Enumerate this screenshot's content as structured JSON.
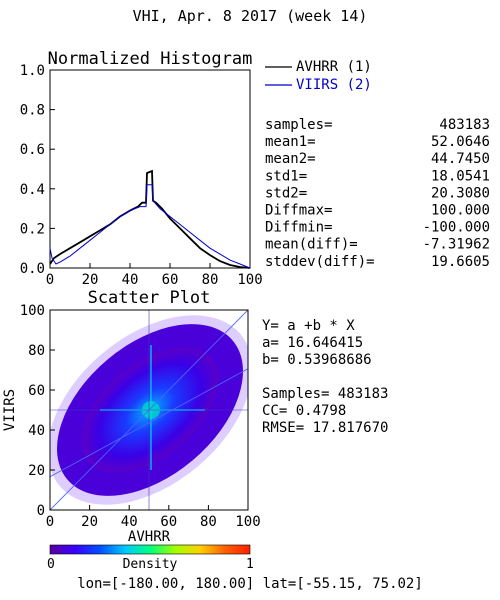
{
  "page_title": "VHI,  Apr. 8 2017 (week 14)",
  "footer": {
    "lon_label": "lon=",
    "lon_range": "[-180.00, 180.00]",
    "lat_label": "lat=",
    "lat_range": "[-55.15, 75.02]"
  },
  "chart_data": [
    {
      "type": "line",
      "title": "Normalized Histogram",
      "xlim": [
        0,
        100
      ],
      "ylim": [
        0,
        1.0
      ],
      "x_ticks": [
        0,
        20,
        40,
        60,
        80,
        100
      ],
      "y_ticks": [
        "0.0",
        "0.2",
        "0.4",
        "0.6",
        "0.8",
        "1.0"
      ],
      "series": [
        {
          "name": "AVHRR (1)",
          "color": "#000000",
          "points": [
            [
              0,
              0.02
            ],
            [
              2,
              0.05
            ],
            [
              5,
              0.07
            ],
            [
              10,
              0.1
            ],
            [
              15,
              0.13
            ],
            [
              20,
              0.16
            ],
            [
              25,
              0.19
            ],
            [
              30,
              0.22
            ],
            [
              35,
              0.26
            ],
            [
              40,
              0.29
            ],
            [
              44,
              0.31
            ],
            [
              46,
              0.33
            ],
            [
              48,
              0.33
            ],
            [
              48.5,
              0.48
            ],
            [
              51,
              0.49
            ],
            [
              51.5,
              0.34
            ],
            [
              53,
              0.33
            ],
            [
              56,
              0.3
            ],
            [
              60,
              0.25
            ],
            [
              65,
              0.2
            ],
            [
              70,
              0.15
            ],
            [
              75,
              0.1
            ],
            [
              80,
              0.065
            ],
            [
              85,
              0.035
            ],
            [
              90,
              0.015
            ],
            [
              95,
              0.005
            ],
            [
              100,
              0.0
            ]
          ]
        },
        {
          "name": "VIIRS (2)",
          "color": "#0000cc",
          "points": [
            [
              0,
              0.1
            ],
            [
              1,
              0.05
            ],
            [
              3,
              0.02
            ],
            [
              5,
              0.03
            ],
            [
              10,
              0.06
            ],
            [
              15,
              0.1
            ],
            [
              20,
              0.14
            ],
            [
              25,
              0.18
            ],
            [
              30,
              0.22
            ],
            [
              35,
              0.26
            ],
            [
              40,
              0.29
            ],
            [
              45,
              0.31
            ],
            [
              48,
              0.31
            ],
            [
              48.5,
              0.42
            ],
            [
              51,
              0.42
            ],
            [
              51.5,
              0.34
            ],
            [
              55,
              0.3
            ],
            [
              60,
              0.26
            ],
            [
              65,
              0.22
            ],
            [
              70,
              0.18
            ],
            [
              75,
              0.14
            ],
            [
              80,
              0.1
            ],
            [
              85,
              0.07
            ],
            [
              90,
              0.04
            ],
            [
              95,
              0.02
            ],
            [
              100,
              0.0
            ]
          ]
        }
      ]
    },
    {
      "type": "scatter",
      "title": "Scatter Plot",
      "xlabel": "AVHRR",
      "ylabel": "VIIRS",
      "xlim": [
        0,
        100
      ],
      "ylim": [
        0,
        100
      ],
      "x_ticks": [
        0,
        20,
        40,
        60,
        80,
        100
      ],
      "y_ticks": [
        0,
        20,
        40,
        60,
        80,
        100
      ],
      "fit": {
        "a": 16.646415,
        "b": 0.53968686
      },
      "density_colorbar": {
        "label": "Density",
        "min_label": "0",
        "max_label": "1",
        "colors": [
          "#5a00a0",
          "#3a00ff",
          "#0050ff",
          "#00c8ff",
          "#00ff80",
          "#a0ff00",
          "#ffd000",
          "#ff6000",
          "#ff2000"
        ]
      }
    }
  ],
  "legend": {
    "items": [
      {
        "label": "AVHRR (1)",
        "color": "#000000"
      },
      {
        "label": "VIIRS (2)",
        "color": "#0000cc"
      }
    ]
  },
  "stats": [
    {
      "label": "samples=",
      "value": "483183"
    },
    {
      "label": "mean1=",
      "value": "52.0646"
    },
    {
      "label": "mean2=",
      "value": "44.7450"
    },
    {
      "label": "std1=",
      "value": "18.0541"
    },
    {
      "label": "std2=",
      "value": "20.3080"
    },
    {
      "label": "Diffmax=",
      "value": "100.000"
    },
    {
      "label": "Diffmin=",
      "value": "-100.000"
    },
    {
      "label": "mean(diff)=",
      "value": "-7.31962"
    },
    {
      "label": "stddev(diff)=",
      "value": "19.6605"
    }
  ],
  "regression": {
    "equation": "Y= a +b * X",
    "a_line": "a= 16.646415",
    "b_line": "b= 0.53968686",
    "samples_line": "Samples= 483183",
    "cc_line": "CC=  0.4798",
    "rmse_line": "RMSE= 17.817670"
  }
}
